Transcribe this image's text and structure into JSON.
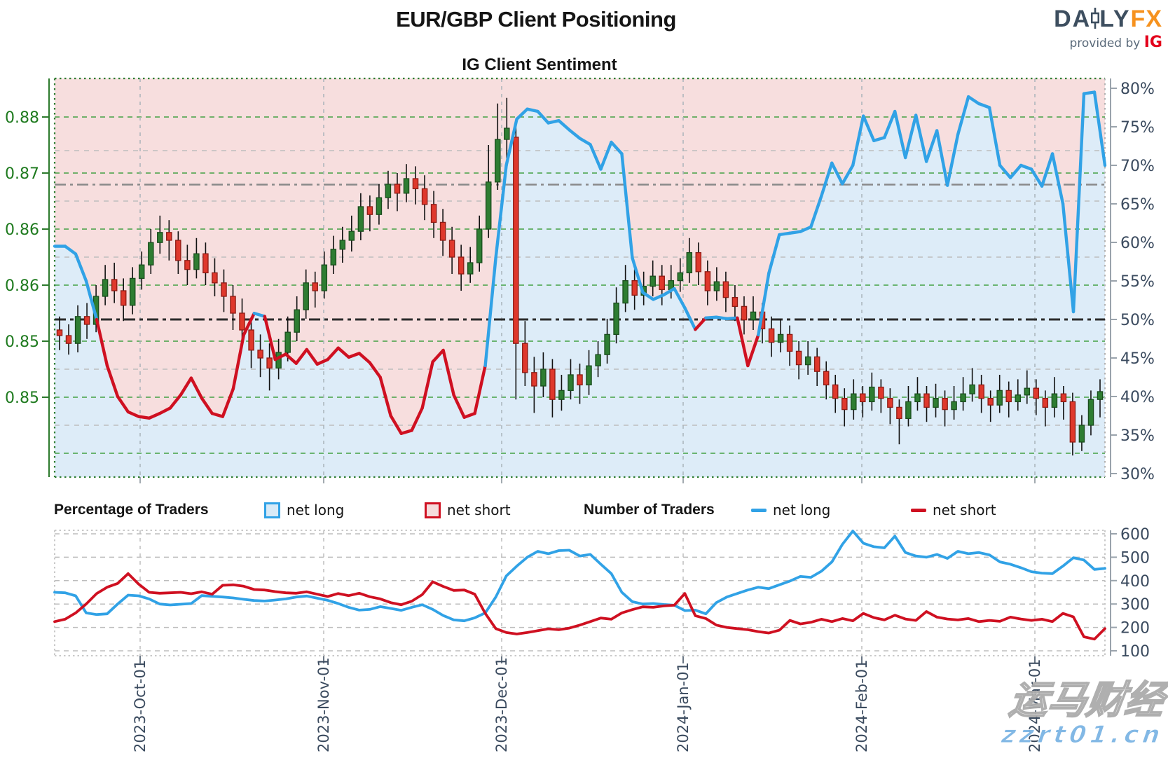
{
  "header": {
    "title": "EUR/GBP Client Positioning",
    "subtitle": "IG Client Sentiment",
    "logo": {
      "daily_left": "DA",
      "daily_right": "LY",
      "fx": "FX",
      "provided_by": "provided by",
      "ig": "IG"
    }
  },
  "watermark": {
    "line1": "运马财经",
    "line2": "zzrt01.cn"
  },
  "legend": {
    "percentage_title": "Percentage of Traders",
    "pct_net_long": "net long",
    "pct_net_short": "net short",
    "number_title": "Number of Traders",
    "num_net_long": "net long",
    "num_net_short": "net short"
  },
  "colors": {
    "net_long_line": "#31a2e6",
    "net_short_line": "#cf1021",
    "fill_above_pink": "#f7dede",
    "fill_below_blue": "#ddecf8",
    "candle_up": "#2e7d32",
    "candle_up_edge": "#1a4d1d",
    "candle_down": "#df382c",
    "candle_down_edge": "#8e1b14",
    "wick": "#111111",
    "price_axis_text": "#1e7a1e",
    "pct_axis_text": "#3a4a5e",
    "grid_green": "#44a144",
    "grid_gray": "#bdbdbd",
    "neutral_line": "#2b2b2b",
    "current_sentiment_line": "#8a8a8a"
  },
  "chart_data": [
    {
      "type": "candlestick+line",
      "title": "IG Client Sentiment",
      "x_tick_labels": [
        "2023-Oct-01",
        "2023-Nov-01",
        "2023-Dec-01",
        "2024-Jan-01",
        "2024-Feb-01",
        "2024-Mar-01"
      ],
      "price_axis": {
        "side": "left",
        "tick_labels": [
          "0.88",
          "0.87",
          "0.86",
          "0.86",
          "0.85",
          "0.85"
        ],
        "tick_values": [
          0.88,
          0.875,
          0.87,
          0.865,
          0.86,
          0.855
        ],
        "grid_values": [
          0.88,
          0.875,
          0.87,
          0.865,
          0.86,
          0.855,
          0.85
        ]
      },
      "pct_axis": {
        "side": "right",
        "min": 30,
        "max": 80,
        "step": 5,
        "unit": "%"
      },
      "reference_lines": {
        "neutral_pct": 50,
        "current_sentiment_pct": 67.5
      },
      "sentiment_rule": "line colored blue when net-long >= 50%, red when below; pink fill above line, light blue below",
      "net_long_pct": [
        59.5,
        59.5,
        58.5,
        55,
        50,
        44,
        40,
        38,
        37.4,
        37.2,
        37.8,
        38.5,
        40.2,
        42.4,
        39.8,
        37.8,
        37.4,
        41,
        48,
        50.8,
        50.4,
        44.8,
        45.5,
        44.3,
        46.1,
        44.2,
        44.8,
        46.3,
        45.1,
        45.6,
        44.4,
        42.5,
        37.5,
        35.2,
        35.6,
        38.5,
        44.5,
        46,
        40.2,
        37.3,
        37.8,
        44,
        58,
        70,
        76,
        77.3,
        77,
        75.5,
        75.8,
        74.6,
        73.5,
        72.7,
        69.5,
        73,
        71.5,
        58,
        53.5,
        52.6,
        53.2,
        54,
        51.5,
        48.7,
        50.2,
        50.3,
        50.1,
        50.2,
        44,
        48,
        56,
        61,
        61.2,
        61.4,
        62,
        66,
        70.3,
        67.6,
        70,
        76.4,
        73.2,
        73.6,
        77,
        71,
        76.5,
        70.5,
        74.5,
        67.4,
        74,
        78.9,
        78,
        77.5,
        70,
        68.4,
        70,
        69.5,
        67.3,
        71.5,
        65,
        51,
        79.3,
        79.5,
        70
      ],
      "candles_ohlc": [
        [
          0.861,
          0.8622,
          0.8592,
          0.8605
        ],
        [
          0.8605,
          0.8615,
          0.8588,
          0.8598
        ],
        [
          0.8598,
          0.8632,
          0.859,
          0.8622
        ],
        [
          0.8622,
          0.8634,
          0.8602,
          0.8615
        ],
        [
          0.8615,
          0.865,
          0.8608,
          0.864
        ],
        [
          0.864,
          0.8668,
          0.8632,
          0.8655
        ],
        [
          0.8655,
          0.867,
          0.8634,
          0.8645
        ],
        [
          0.8645,
          0.8656,
          0.8618,
          0.8632
        ],
        [
          0.8632,
          0.8666,
          0.8624,
          0.8656
        ],
        [
          0.8656,
          0.868,
          0.8646,
          0.8668
        ],
        [
          0.8668,
          0.87,
          0.866,
          0.8688
        ],
        [
          0.8688,
          0.8712,
          0.8678,
          0.8697
        ],
        [
          0.8697,
          0.8708,
          0.8672,
          0.869
        ],
        [
          0.869,
          0.8698,
          0.866,
          0.8672
        ],
        [
          0.8672,
          0.8686,
          0.865,
          0.8664
        ],
        [
          0.8664,
          0.8692,
          0.8656,
          0.8678
        ],
        [
          0.8678,
          0.8688,
          0.865,
          0.8661
        ],
        [
          0.8661,
          0.8674,
          0.864,
          0.8652
        ],
        [
          0.8652,
          0.8664,
          0.8626,
          0.864
        ],
        [
          0.864,
          0.865,
          0.861,
          0.8625
        ],
        [
          0.8625,
          0.8638,
          0.8596,
          0.861
        ],
        [
          0.861,
          0.862,
          0.8576,
          0.8592
        ],
        [
          0.8592,
          0.8606,
          0.8568,
          0.8585
        ],
        [
          0.8585,
          0.8598,
          0.8556,
          0.8576
        ],
        [
          0.8576,
          0.8602,
          0.8566,
          0.859
        ],
        [
          0.859,
          0.8622,
          0.8582,
          0.8608
        ],
        [
          0.8608,
          0.864,
          0.86,
          0.8628
        ],
        [
          0.8628,
          0.8664,
          0.862,
          0.8652
        ],
        [
          0.8652,
          0.8662,
          0.863,
          0.8645
        ],
        [
          0.8645,
          0.868,
          0.8638,
          0.8668
        ],
        [
          0.8668,
          0.8694,
          0.866,
          0.8682
        ],
        [
          0.8682,
          0.8702,
          0.867,
          0.869
        ],
        [
          0.869,
          0.8712,
          0.868,
          0.8698
        ],
        [
          0.8698,
          0.8732,
          0.869,
          0.872
        ],
        [
          0.872,
          0.873,
          0.8698,
          0.8713
        ],
        [
          0.8713,
          0.874,
          0.8704,
          0.8728
        ],
        [
          0.8728,
          0.8752,
          0.8718,
          0.874
        ],
        [
          0.874,
          0.875,
          0.8716,
          0.8732
        ],
        [
          0.8732,
          0.8758,
          0.8724,
          0.8745
        ],
        [
          0.8745,
          0.8756,
          0.8722,
          0.8736
        ],
        [
          0.8736,
          0.8748,
          0.8708,
          0.8722
        ],
        [
          0.8722,
          0.8734,
          0.8692,
          0.8706
        ],
        [
          0.8706,
          0.8718,
          0.8676,
          0.869
        ],
        [
          0.869,
          0.8702,
          0.866,
          0.8675
        ],
        [
          0.8675,
          0.8686,
          0.8645,
          0.866
        ],
        [
          0.866,
          0.8684,
          0.8652,
          0.867
        ],
        [
          0.867,
          0.8712,
          0.8662,
          0.87
        ],
        [
          0.87,
          0.8775,
          0.8692,
          0.8742
        ],
        [
          0.8742,
          0.8812,
          0.8735,
          0.878
        ],
        [
          0.878,
          0.8817,
          0.876,
          0.879
        ],
        [
          0.8782,
          0.8795,
          0.8548,
          0.8598
        ],
        [
          0.8598,
          0.8618,
          0.856,
          0.8572
        ],
        [
          0.8572,
          0.8586,
          0.8536,
          0.856
        ],
        [
          0.856,
          0.859,
          0.855,
          0.8575
        ],
        [
          0.8575,
          0.8584,
          0.8532,
          0.8548
        ],
        [
          0.8548,
          0.857,
          0.8538,
          0.8556
        ],
        [
          0.8556,
          0.8584,
          0.8548,
          0.857
        ],
        [
          0.857,
          0.858,
          0.8544,
          0.8561
        ],
        [
          0.8561,
          0.8592,
          0.8552,
          0.8578
        ],
        [
          0.8578,
          0.86,
          0.8568,
          0.8588
        ],
        [
          0.8588,
          0.862,
          0.858,
          0.8606
        ],
        [
          0.8606,
          0.8648,
          0.8598,
          0.8634
        ],
        [
          0.8634,
          0.8668,
          0.8626,
          0.8654
        ],
        [
          0.8654,
          0.8664,
          0.8628,
          0.8641
        ],
        [
          0.8641,
          0.8662,
          0.8632,
          0.8649
        ],
        [
          0.8649,
          0.8672,
          0.864,
          0.8658
        ],
        [
          0.8658,
          0.8668,
          0.8632,
          0.8646
        ],
        [
          0.8646,
          0.8668,
          0.8638,
          0.8654
        ],
        [
          0.8654,
          0.8674,
          0.8644,
          0.8661
        ],
        [
          0.8661,
          0.8692,
          0.8652,
          0.8679
        ],
        [
          0.8679,
          0.8688,
          0.865,
          0.8662
        ],
        [
          0.8662,
          0.8672,
          0.8632,
          0.8645
        ],
        [
          0.8645,
          0.8666,
          0.8636,
          0.8653
        ],
        [
          0.8653,
          0.8662,
          0.8626,
          0.8639
        ],
        [
          0.8639,
          0.865,
          0.8618,
          0.8631
        ],
        [
          0.8631,
          0.864,
          0.8606,
          0.8619
        ],
        [
          0.8619,
          0.864,
          0.861,
          0.8626
        ],
        [
          0.8626,
          0.8634,
          0.8598,
          0.8611
        ],
        [
          0.8611,
          0.8622,
          0.8586,
          0.8599
        ],
        [
          0.8599,
          0.862,
          0.859,
          0.8606
        ],
        [
          0.8606,
          0.8614,
          0.8578,
          0.8591
        ],
        [
          0.8591,
          0.86,
          0.8566,
          0.8579
        ],
        [
          0.8579,
          0.86,
          0.857,
          0.8586
        ],
        [
          0.8586,
          0.8594,
          0.856,
          0.8573
        ],
        [
          0.8573,
          0.8582,
          0.8548,
          0.8561
        ],
        [
          0.8561,
          0.857,
          0.8536,
          0.8549
        ],
        [
          0.8549,
          0.8558,
          0.8524,
          0.8539
        ],
        [
          0.8539,
          0.8566,
          0.853,
          0.8553
        ],
        [
          0.8553,
          0.856,
          0.8532,
          0.8546
        ],
        [
          0.8546,
          0.8572,
          0.8538,
          0.8559
        ],
        [
          0.8559,
          0.8566,
          0.8536,
          0.8549
        ],
        [
          0.8549,
          0.8558,
          0.8526,
          0.8541
        ],
        [
          0.8541,
          0.8548,
          0.8508,
          0.8531
        ],
        [
          0.8531,
          0.856,
          0.8524,
          0.8546
        ],
        [
          0.8546,
          0.8568,
          0.8538,
          0.8553
        ],
        [
          0.8553,
          0.856,
          0.8528,
          0.8541
        ],
        [
          0.8541,
          0.8562,
          0.8532,
          0.8549
        ],
        [
          0.8549,
          0.8556,
          0.8524,
          0.8539
        ],
        [
          0.8539,
          0.856,
          0.853,
          0.8546
        ],
        [
          0.8546,
          0.8568,
          0.8538,
          0.8553
        ],
        [
          0.8553,
          0.8576,
          0.8546,
          0.8561
        ],
        [
          0.8561,
          0.857,
          0.8536,
          0.8549
        ],
        [
          0.8549,
          0.8556,
          0.8528,
          0.8543
        ],
        [
          0.8543,
          0.857,
          0.8536,
          0.8556
        ],
        [
          0.8556,
          0.8564,
          0.8532,
          0.8546
        ],
        [
          0.8546,
          0.8566,
          0.8538,
          0.8552
        ],
        [
          0.8552,
          0.8574,
          0.8544,
          0.8558
        ],
        [
          0.8558,
          0.8566,
          0.8534,
          0.8549
        ],
        [
          0.8549,
          0.8556,
          0.8524,
          0.8541
        ],
        [
          0.8541,
          0.8568,
          0.8532,
          0.8553
        ],
        [
          0.8553,
          0.856,
          0.853,
          0.8546
        ],
        [
          0.8546,
          0.8554,
          0.8498,
          0.851
        ],
        [
          0.851,
          0.8534,
          0.8502,
          0.8525
        ],
        [
          0.8525,
          0.8556,
          0.8516,
          0.8548
        ],
        [
          0.8548,
          0.8566,
          0.8532,
          0.8555
        ]
      ]
    },
    {
      "type": "line",
      "title": "Number of Traders",
      "y_axis": {
        "side": "right",
        "min": 100,
        "max": 600,
        "step": 100
      },
      "x_tick_labels": [
        "2023-Oct-01",
        "2023-Nov-01",
        "2023-Dec-01",
        "2024-Jan-01",
        "2024-Feb-01",
        "2024-Mar-01"
      ],
      "series": [
        {
          "name": "net long",
          "color": "#31a2e6",
          "values": [
            350,
            348,
            335,
            262,
            255,
            258,
            300,
            338,
            335,
            322,
            300,
            296,
            299,
            302,
            336,
            333,
            330,
            326,
            320,
            315,
            313,
            317,
            322,
            330,
            334,
            325,
            316,
            302,
            286,
            274,
            277,
            289,
            281,
            273,
            286,
            297,
            277,
            251,
            232,
            228,
            241,
            262,
            330,
            420,
            462,
            500,
            525,
            515,
            528,
            530,
            505,
            512,
            470,
            430,
            350,
            310,
            300,
            302,
            298,
            295,
            272,
            274,
            258,
            306,
            330,
            345,
            360,
            372,
            366,
            382,
            398,
            418,
            414,
            440,
            480,
            555,
            612,
            560,
            545,
            540,
            590,
            520,
            505,
            500,
            512,
            495,
            525,
            515,
            520,
            510,
            480,
            470,
            455,
            438,
            432,
            430,
            462,
            498,
            488,
            448,
            452
          ]
        },
        {
          "name": "net short",
          "color": "#cf1021",
          "values": [
            225,
            235,
            262,
            300,
            345,
            372,
            388,
            430,
            385,
            350,
            346,
            348,
            350,
            344,
            352,
            342,
            380,
            382,
            376,
            362,
            360,
            353,
            348,
            346,
            352,
            342,
            332,
            345,
            336,
            346,
            331,
            322,
            306,
            297,
            312,
            340,
            395,
            375,
            358,
            360,
            342,
            260,
            195,
            178,
            172,
            178,
            186,
            194,
            190,
            197,
            210,
            225,
            240,
            235,
            262,
            276,
            288,
            286,
            292,
            295,
            345,
            250,
            238,
            210,
            200,
            195,
            190,
            182,
            176,
            188,
            230,
            215,
            222,
            235,
            225,
            238,
            228,
            260,
            242,
            232,
            252,
            236,
            230,
            268,
            244,
            236,
            232,
            238,
            225,
            230,
            226,
            244,
            236,
            230,
            235,
            225,
            260,
            245,
            160,
            150,
            195
          ]
        }
      ]
    }
  ]
}
